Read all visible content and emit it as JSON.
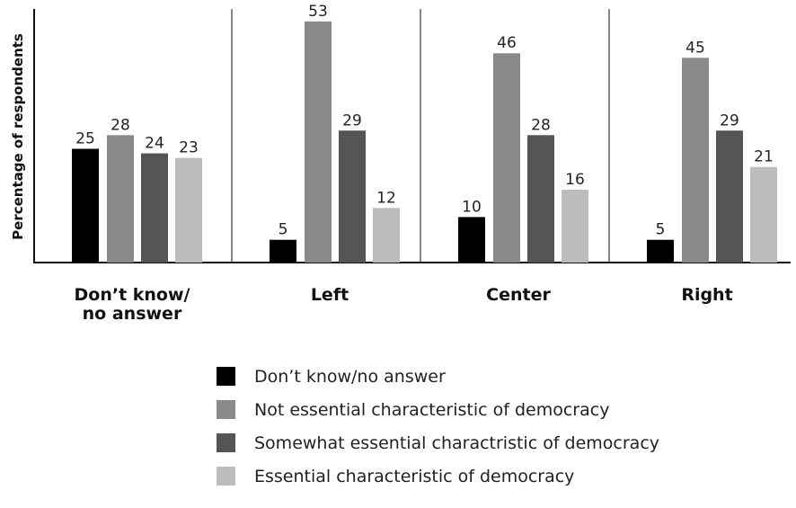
{
  "chart_data": {
    "type": "bar",
    "ylabel": "Percentage of respondents",
    "xlabel": "",
    "title": "",
    "ylim": [
      0,
      55
    ],
    "categories": [
      [
        "Don’t know/",
        "no answer"
      ],
      [
        "Left"
      ],
      [
        "Center"
      ],
      [
        "Right"
      ]
    ],
    "series": [
      {
        "name": "Don’t know/no answer",
        "color": "#000000",
        "values": [
          25,
          5,
          10,
          5
        ]
      },
      {
        "name": "Not essential characteristic of democracy",
        "color": "#8a8a8d",
        "values": [
          28,
          53,
          46,
          45
        ]
      },
      {
        "name": "Somewhat essential charactristic of democracy",
        "color": "#555557",
        "values": [
          24,
          29,
          28,
          29
        ]
      },
      {
        "name": "Essential characteristic of democracy",
        "color": "#bdbdbe",
        "values": [
          23,
          12,
          16,
          21
        ]
      }
    ],
    "grid": false,
    "legend_position": "bottom"
  }
}
